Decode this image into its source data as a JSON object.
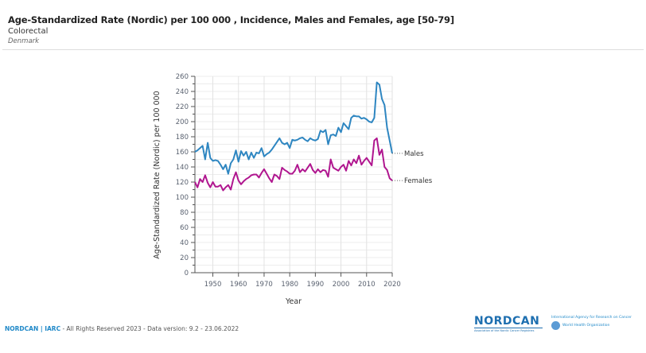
{
  "header": {
    "title": "Age-Standardized Rate (Nordic) per 100 000 , Incidence, Males and Females, age [50-79]",
    "subtitle": "Colorectal",
    "region": "Denmark"
  },
  "footer": {
    "brand": "NORDCAN | IARC",
    "text": " - All Rights Reserved 2023 - Data version: 9.2 - 23.06.2022"
  },
  "logos": {
    "nordcan": "NORDCAN",
    "nordcan_sub": "Association of the Nordic Cancer Registries",
    "iarc": "International Agency for Research on Cancer",
    "who": "World Health Organization"
  },
  "chart_data": {
    "type": "line",
    "title": "Age-Standardized Rate (Nordic) per 100 000 , Incidence, Males and Females, age [50-79]",
    "xlabel": "Year",
    "ylabel": "Age-Standardized Rate (Nordic) per 100 000",
    "xlim": [
      1943,
      2020
    ],
    "ylim": [
      0,
      260
    ],
    "xticks": [
      1950,
      1960,
      1970,
      1980,
      1990,
      2000,
      2010,
      2020
    ],
    "yticks": [
      0,
      20,
      40,
      60,
      80,
      100,
      120,
      140,
      160,
      180,
      200,
      220,
      240,
      260
    ],
    "grid": true,
    "legend": "inline-right",
    "x": [
      1943,
      1944,
      1945,
      1946,
      1947,
      1948,
      1949,
      1950,
      1951,
      1952,
      1953,
      1954,
      1955,
      1956,
      1957,
      1958,
      1959,
      1960,
      1961,
      1962,
      1963,
      1964,
      1965,
      1966,
      1967,
      1968,
      1969,
      1970,
      1971,
      1972,
      1973,
      1974,
      1975,
      1976,
      1977,
      1978,
      1979,
      1980,
      1981,
      1982,
      1983,
      1984,
      1985,
      1986,
      1987,
      1988,
      1989,
      1990,
      1991,
      1992,
      1993,
      1994,
      1995,
      1996,
      1997,
      1998,
      1999,
      2000,
      2001,
      2002,
      2003,
      2004,
      2005,
      2006,
      2007,
      2008,
      2009,
      2010,
      2011,
      2012,
      2013,
      2014,
      2015,
      2016,
      2017,
      2018,
      2019,
      2020
    ],
    "series": [
      {
        "name": "Males",
        "color": "#2e86c1",
        "values": [
          160,
          162,
          165,
          168,
          150,
          172,
          152,
          148,
          149,
          148,
          143,
          137,
          143,
          131,
          145,
          150,
          162,
          147,
          161,
          155,
          160,
          150,
          159,
          152,
          159,
          158,
          165,
          154,
          157,
          159,
          163,
          168,
          173,
          178,
          172,
          170,
          172,
          165,
          176,
          175,
          176,
          178,
          179,
          176,
          174,
          178,
          176,
          175,
          177,
          188,
          186,
          189,
          170,
          182,
          183,
          181,
          192,
          186,
          198,
          194,
          190,
          205,
          208,
          207,
          207,
          204,
          205,
          203,
          200,
          199,
          205,
          252,
          249,
          230,
          222,
          192,
          175,
          158
        ]
      },
      {
        "name": "Females",
        "color": "#b0168f",
        "values": [
          120,
          113,
          124,
          120,
          129,
          119,
          113,
          120,
          114,
          114,
          116,
          109,
          113,
          116,
          110,
          124,
          133,
          122,
          117,
          121,
          124,
          126,
          129,
          130,
          130,
          126,
          132,
          137,
          131,
          125,
          120,
          130,
          128,
          124,
          139,
          136,
          134,
          131,
          131,
          135,
          143,
          133,
          137,
          134,
          139,
          144,
          136,
          132,
          137,
          133,
          136,
          135,
          127,
          150,
          139,
          137,
          135,
          140,
          143,
          135,
          148,
          142,
          150,
          145,
          155,
          143,
          148,
          152,
          147,
          142,
          175,
          178,
          156,
          163,
          140,
          136,
          125,
          122
        ]
      }
    ]
  }
}
